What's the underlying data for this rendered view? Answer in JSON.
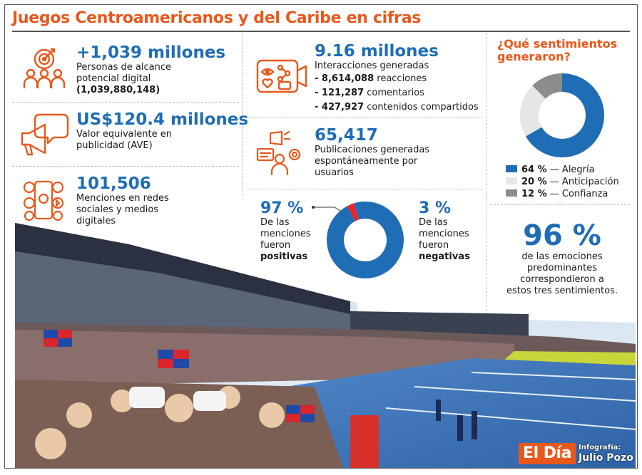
{
  "title": "Juegos Centroamericanos y del Caribe en cifras",
  "stats": {
    "reach": {
      "value": "+1,039 millones",
      "line1": "Personas de alcance",
      "line2": "potencial digital",
      "line3": "(1,039,880,148)"
    },
    "ave": {
      "value": "US$120.4 millones",
      "line1": "Valor equivalente en",
      "line2": "publicidad (AVE)"
    },
    "mentions": {
      "value": "101,506",
      "line1": "Menciones en redes",
      "line2": "sociales y medios",
      "line3": "digitales"
    },
    "interactions": {
      "value": "9.16 millones",
      "label": "Interacciones generadas",
      "items": [
        {
          "num": "- 8,614,088",
          "text": " reacciones"
        },
        {
          "num": "- 121,287",
          "text": " comentarios"
        },
        {
          "num": "- 427,927",
          "text": " contenidos compartidos"
        }
      ]
    },
    "publications": {
      "value": "65,417",
      "line1": "Publicaciones generadas",
      "line2": "espontáneamente por",
      "line3": "usuarios"
    }
  },
  "polarity": {
    "positive": {
      "pct": "97 %",
      "line1": "De las",
      "line2": "menciones",
      "line3": "fueron",
      "line4": "positivas"
    },
    "negative": {
      "pct": "3 %",
      "line1": "De las",
      "line2": "menciones",
      "line3": "fueron",
      "line4": "negativas"
    }
  },
  "sentiment": {
    "heading_line1": "¿Qué sentimientos",
    "heading_line2": "generaron?",
    "summary_pct": "96 %",
    "summary_line1": "de las emociones",
    "summary_line2": "predominantes",
    "summary_line3": "correspondieron a",
    "summary_line4": "estos tres sentimientos."
  },
  "chart_data": [
    {
      "type": "pie",
      "categories": [
        "Positivas",
        "Negativas"
      ],
      "values": [
        97,
        3
      ],
      "colors": [
        "#1f6db5",
        "#e8232a"
      ]
    },
    {
      "type": "pie",
      "categories": [
        "Alegría",
        "Anticipación",
        "Confianza"
      ],
      "values": [
        64,
        20,
        12
      ],
      "labels": [
        "64 %",
        "20 %",
        "12 %"
      ],
      "colors": [
        "#1f6db5",
        "#e6e6e6",
        "#8c8c8c"
      ]
    }
  ],
  "colors": {
    "accent": "#e8581c",
    "blue": "#1f6db5"
  },
  "footer": {
    "logo": "El Día",
    "credit_label": "Infografía:",
    "credit_name": "Julio Pozo"
  }
}
